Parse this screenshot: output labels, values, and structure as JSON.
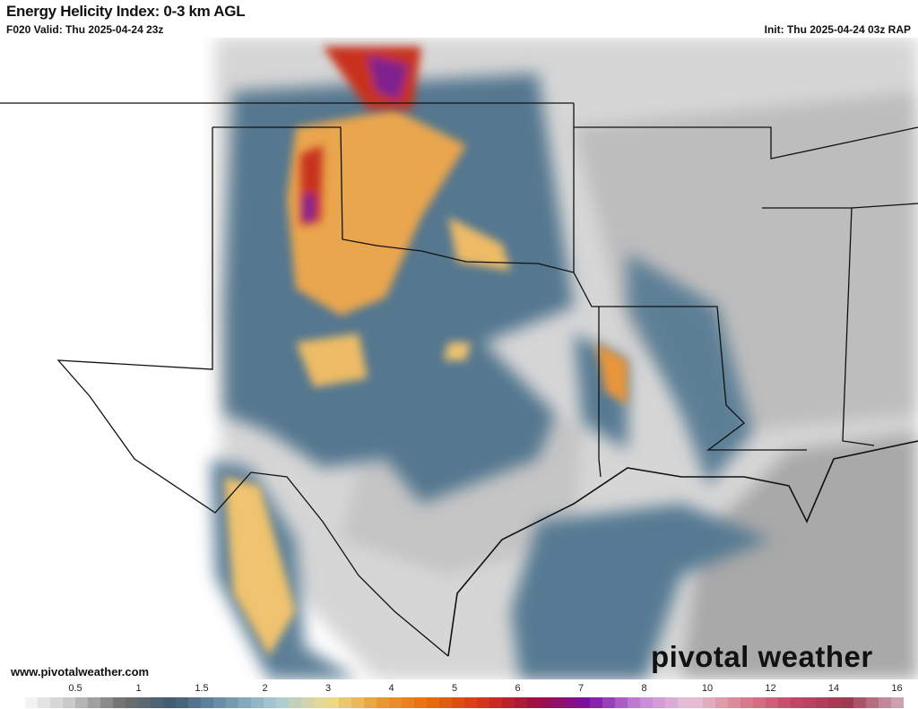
{
  "header": {
    "title": "Energy Helicity Index: 0-3 km AGL",
    "valid": "F020 Valid: Thu 2025-04-24 23z",
    "init": "Init: Thu 2025-04-24 03z RAP"
  },
  "footer": {
    "url": "www.pivotalweather.com",
    "brand": "pivotal weather"
  },
  "colorbar": {
    "ticks": [
      "0.5",
      "1",
      "1.5",
      "2",
      "3",
      "4",
      "5",
      "6",
      "7",
      "8",
      "10",
      "12",
      "14",
      "16"
    ],
    "stops": [
      "#ffffff",
      "#c8c8c8",
      "#707070",
      "#3f5b74",
      "#6f95ad",
      "#a9ccd6",
      "#efdc8c",
      "#e79a3c",
      "#e66a10",
      "#d8301c",
      "#9c1040",
      "#7a10a0",
      "#c784d8",
      "#e9c4d8",
      "#d8808f",
      "#c04868",
      "#9c3850",
      "#cfa0ae"
    ]
  },
  "colors": {
    "low_gray": "#b9b9b9",
    "blue": "#4f7390",
    "yellow": "#f0d58a",
    "orange": "#e68b32",
    "red": "#d63c1e",
    "purple": "#7d2090",
    "border": "#111111",
    "county": "#9a9a9a"
  }
}
